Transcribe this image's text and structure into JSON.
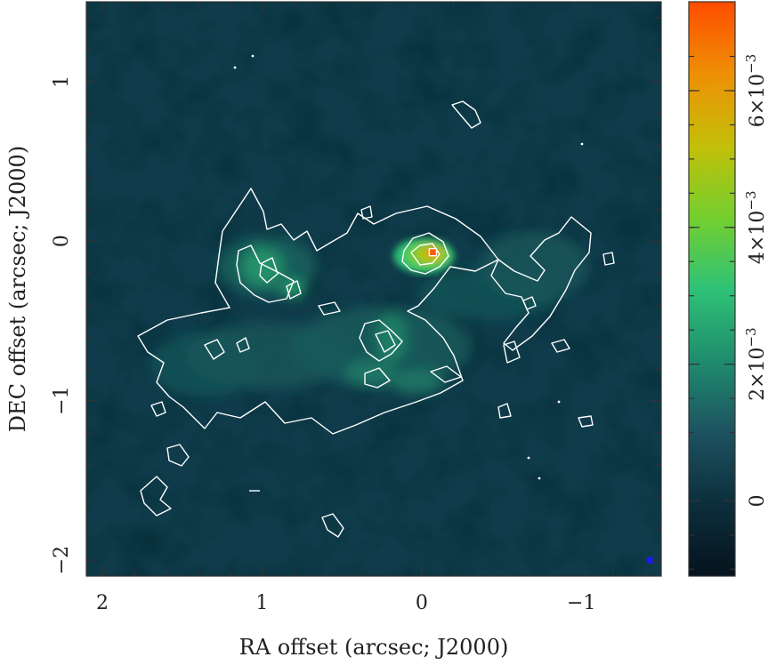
{
  "chart_data": {
    "type": "heatmap",
    "title": "",
    "xlabel": "RA offset (arcsec; J2000)",
    "ylabel": "DEC offset (arcsec; J2000)",
    "xlim": [
      2.1,
      -1.5
    ],
    "ylim": [
      -2.1,
      1.5
    ],
    "x_ticks": [
      {
        "value": 2,
        "label": "2"
      },
      {
        "value": 1,
        "label": "1"
      },
      {
        "value": 0,
        "label": "0"
      },
      {
        "value": -1,
        "label": "−1"
      }
    ],
    "y_ticks": [
      {
        "value": 1,
        "label": "1"
      },
      {
        "value": 0,
        "label": "0"
      },
      {
        "value": -1,
        "label": "−1"
      },
      {
        "value": -2,
        "label": "−2"
      }
    ],
    "colorbar": {
      "range": [
        -0.0011,
        0.0073
      ],
      "ticks": [
        {
          "value": 0,
          "mant": "0",
          "exp": ""
        },
        {
          "value": 0.002,
          "mant": "2×10",
          "exp": "−3"
        },
        {
          "value": 0.004,
          "mant": "4×10",
          "exp": "−3"
        },
        {
          "value": 0.006,
          "mant": "6×10",
          "exp": "−3"
        }
      ],
      "colormap": [
        "#06131d",
        "#0c2e3c",
        "#1d5260",
        "#1f8c6e",
        "#2ec276",
        "#74cf2e",
        "#c4bf08",
        "#ee8f04",
        "#ff4c00"
      ]
    },
    "emission_peak": {
      "x": -0.07,
      "y": -0.07,
      "value": 0.0068
    },
    "beam": {
      "x": -1.43,
      "y": -2.0,
      "color": "#1a1aff"
    },
    "contours": {
      "color": "#ffffff"
    }
  }
}
